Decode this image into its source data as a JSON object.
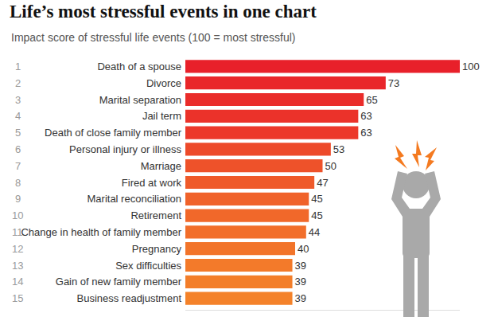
{
  "chart_data": {
    "type": "bar",
    "orientation": "horizontal",
    "title": "Life’s most stressful events in one chart",
    "subtitle": "Impact score of stressful life events (100 = most stressful)",
    "ranks": [
      1,
      2,
      3,
      4,
      5,
      6,
      7,
      8,
      9,
      10,
      11,
      12,
      13,
      14,
      15
    ],
    "categories": [
      "Death of a spouse",
      "Divorce",
      "Marital separation",
      "Jail term",
      "Death of close family member",
      "Personal injury or illness",
      "Marriage",
      "Fired at work",
      "Marital reconciliation",
      "Retirement",
      "Change in health of family member",
      "Pregnancy",
      "Sex difficulties",
      "Gain of new family member",
      "Business readjustment"
    ],
    "values": [
      100,
      73,
      65,
      63,
      63,
      53,
      50,
      47,
      45,
      45,
      44,
      40,
      39,
      39,
      39
    ],
    "colors": [
      "#e8202a",
      "#e9262a",
      "#ea2c2a",
      "#eb322a",
      "#ec382a",
      "#ed4a2a",
      "#ee522a",
      "#ef5a2a",
      "#f0622a",
      "#f1682a",
      "#f26e2a",
      "#f2742a",
      "#f37a2a",
      "#f37e2a",
      "#f4822a"
    ],
    "xlim": [
      0,
      100
    ],
    "data_labels": true,
    "tick_labels": "y",
    "grid": false
  }
}
